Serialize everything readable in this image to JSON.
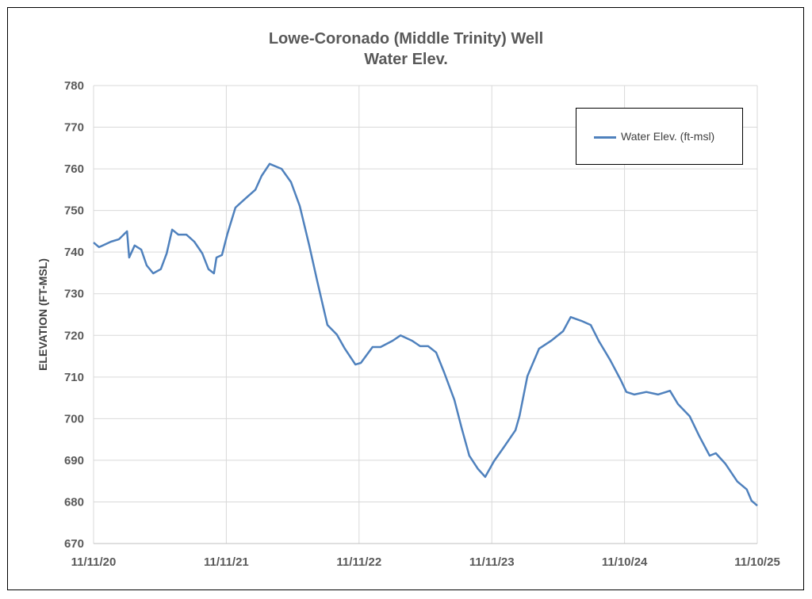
{
  "chart_data": {
    "type": "line",
    "title": [
      "Lowe-Coronado (Middle Trinity) Well",
      "Water Elev."
    ],
    "xlabel": "",
    "ylabel": "ELEVATION (FT-MSL)",
    "ylim": [
      670,
      780
    ],
    "yticks": [
      670,
      680,
      690,
      700,
      710,
      720,
      730,
      740,
      750,
      760,
      770,
      780
    ],
    "xlim": [
      "2020-11-11",
      "2025-11-10"
    ],
    "xticks": [
      {
        "date": "2020-11-11",
        "label": "11/11/20"
      },
      {
        "date": "2021-11-11",
        "label": "11/11/21"
      },
      {
        "date": "2022-11-11",
        "label": "11/11/22"
      },
      {
        "date": "2023-11-11",
        "label": "11/11/23"
      },
      {
        "date": "2024-11-10",
        "label": "11/10/24"
      },
      {
        "date": "2025-11-10",
        "label": "11/10/25"
      }
    ],
    "grid": true,
    "legend_position": "top-right",
    "series": [
      {
        "name": "Water Elev. (ft-msl)",
        "color": "#4f81bd",
        "x": [
          "2020-11-11",
          "2020-11-26",
          "2020-12-29",
          "2021-01-20",
          "2021-02-11",
          "2021-02-17",
          "2021-03-04",
          "2021-03-22",
          "2021-04-06",
          "2021-04-24",
          "2021-05-15",
          "2021-05-31",
          "2021-06-15",
          "2021-07-02",
          "2021-07-24",
          "2021-08-15",
          "2021-09-06",
          "2021-09-23",
          "2021-10-08",
          "2021-10-15",
          "2021-10-30",
          "2021-11-14",
          "2021-12-06",
          "2022-01-04",
          "2022-01-30",
          "2022-02-16",
          "2022-03-10",
          "2022-04-12",
          "2022-05-08",
          "2022-06-01",
          "2022-06-27",
          "2022-07-19",
          "2022-08-16",
          "2022-09-11",
          "2022-10-03",
          "2022-11-01",
          "2022-11-16",
          "2022-12-18",
          "2023-01-09",
          "2023-02-11",
          "2023-03-05",
          "2023-04-06",
          "2023-04-28",
          "2023-05-20",
          "2023-06-11",
          "2023-07-03",
          "2023-07-31",
          "2023-08-20",
          "2023-09-10",
          "2023-10-04",
          "2023-10-24",
          "2023-11-17",
          "2023-12-13",
          "2024-01-15",
          "2024-01-26",
          "2024-02-17",
          "2024-03-20",
          "2024-04-22",
          "2024-05-25",
          "2024-06-15",
          "2024-07-14",
          "2024-08-09",
          "2024-08-31",
          "2024-10-02",
          "2024-10-31",
          "2024-11-15",
          "2024-12-07",
          "2025-01-09",
          "2025-02-10",
          "2025-03-15",
          "2025-04-06",
          "2025-05-08",
          "2025-06-03",
          "2025-07-02",
          "2025-07-19",
          "2025-08-14",
          "2025-09-16",
          "2025-10-12",
          "2025-10-25",
          "2025-11-10"
        ],
        "y": [
          742.3,
          741.2,
          742.5,
          743.1,
          745.0,
          738.7,
          741.6,
          740.6,
          736.8,
          734.9,
          735.9,
          739.7,
          745.4,
          744.2,
          744.2,
          742.5,
          739.7,
          735.9,
          734.9,
          738.7,
          739.3,
          744.4,
          750.7,
          753.0,
          755.0,
          758.3,
          761.2,
          760.0,
          756.8,
          751.1,
          741.6,
          733.0,
          722.5,
          720.2,
          716.8,
          713.0,
          713.4,
          717.2,
          717.2,
          718.7,
          720.0,
          718.7,
          717.4,
          717.4,
          715.9,
          711.1,
          704.5,
          697.8,
          691.1,
          687.9,
          686.0,
          689.8,
          693.0,
          697.2,
          700.6,
          710.2,
          716.8,
          718.7,
          721.0,
          724.4,
          723.5,
          722.5,
          718.7,
          714.0,
          709.2,
          706.4,
          705.8,
          706.4,
          705.8,
          706.7,
          703.5,
          700.6,
          695.9,
          691.1,
          691.7,
          689.2,
          684.9,
          683.0,
          680.3,
          679.1
        ]
      }
    ]
  }
}
